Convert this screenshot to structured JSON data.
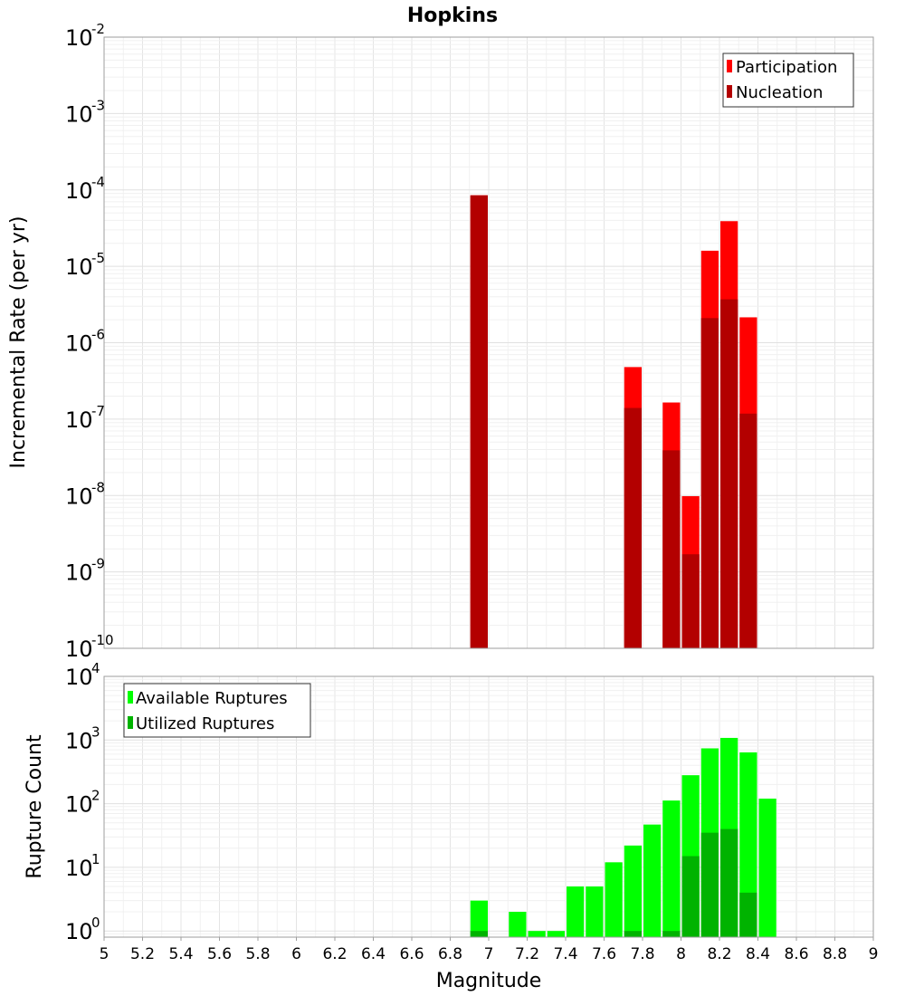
{
  "chart_data": [
    {
      "type": "bar",
      "title": "Hopkins",
      "xlabel": "Magnitude",
      "ylabel": "Incremental Rate (per yr)",
      "yscale": "log",
      "ylim": [
        1e-10,
        0.01
      ],
      "xlim": [
        5,
        9
      ],
      "grid": true,
      "legend_position": "top-right",
      "bar_width": 0.1,
      "y_ticks": [
        {
          "base": "10",
          "exp": "-10",
          "value": 1e-10
        },
        {
          "base": "10",
          "exp": "-9",
          "value": 1e-09
        },
        {
          "base": "10",
          "exp": "-8",
          "value": 1e-08
        },
        {
          "base": "10",
          "exp": "-7",
          "value": 1e-07
        },
        {
          "base": "10",
          "exp": "-6",
          "value": 1e-06
        },
        {
          "base": "10",
          "exp": "-5",
          "value": 1e-05
        },
        {
          "base": "10",
          "exp": "-4",
          "value": 0.0001
        },
        {
          "base": "10",
          "exp": "-3",
          "value": 0.001
        },
        {
          "base": "10",
          "exp": "-2",
          "value": 0.01
        }
      ],
      "series": [
        {
          "name": "Participation",
          "color": "#ff0000",
          "points": [
            {
              "x": 6.95,
              "y": 8.5e-05
            },
            {
              "x": 7.75,
              "y": 4.8e-07
            },
            {
              "x": 7.95,
              "y": 1.65e-07
            },
            {
              "x": 8.05,
              "y": 9.8e-09
            },
            {
              "x": 8.15,
              "y": 1.6e-05
            },
            {
              "x": 8.25,
              "y": 3.9e-05
            },
            {
              "x": 8.35,
              "y": 2.15e-06
            }
          ]
        },
        {
          "name": "Nucleation",
          "color": "#b30000",
          "points": [
            {
              "x": 6.95,
              "y": 8.5e-05
            },
            {
              "x": 7.75,
              "y": 1.4e-07
            },
            {
              "x": 7.95,
              "y": 3.9e-08
            },
            {
              "x": 8.05,
              "y": 1.7e-09
            },
            {
              "x": 8.15,
              "y": 2.1e-06
            },
            {
              "x": 8.25,
              "y": 3.7e-06
            },
            {
              "x": 8.35,
              "y": 1.18e-07
            }
          ]
        }
      ]
    },
    {
      "type": "bar",
      "xlabel": "Magnitude",
      "ylabel": "Rupture Count",
      "yscale": "log",
      "ylim": [
        0.8,
        10000
      ],
      "xlim": [
        5,
        9
      ],
      "grid": true,
      "legend_position": "top-left",
      "bar_width": 0.1,
      "y_ticks": [
        {
          "base": "10",
          "exp": "0",
          "value": 1
        },
        {
          "base": "10",
          "exp": "1",
          "value": 10
        },
        {
          "base": "10",
          "exp": "2",
          "value": 100
        },
        {
          "base": "10",
          "exp": "3",
          "value": 1000
        },
        {
          "base": "10",
          "exp": "4",
          "value": 10000
        }
      ],
      "x_ticks": [
        "5",
        "5.2",
        "5.4",
        "5.6",
        "5.8",
        "6",
        "6.2",
        "6.4",
        "6.6",
        "6.8",
        "7",
        "7.2",
        "7.4",
        "7.6",
        "7.8",
        "8",
        "8.2",
        "8.4",
        "8.6",
        "8.8",
        "9"
      ],
      "series": [
        {
          "name": "Available Ruptures",
          "color": "#00ff00",
          "points": [
            {
              "x": 6.95,
              "y": 3
            },
            {
              "x": 7.15,
              "y": 2
            },
            {
              "x": 7.25,
              "y": 1
            },
            {
              "x": 7.35,
              "y": 1
            },
            {
              "x": 7.45,
              "y": 5
            },
            {
              "x": 7.55,
              "y": 5
            },
            {
              "x": 7.65,
              "y": 12
            },
            {
              "x": 7.75,
              "y": 22
            },
            {
              "x": 7.85,
              "y": 47
            },
            {
              "x": 7.95,
              "y": 112
            },
            {
              "x": 8.05,
              "y": 280
            },
            {
              "x": 8.15,
              "y": 740
            },
            {
              "x": 8.25,
              "y": 1080
            },
            {
              "x": 8.35,
              "y": 640
            },
            {
              "x": 8.45,
              "y": 120
            }
          ]
        },
        {
          "name": "Utilized Ruptures",
          "color": "#00b300",
          "points": [
            {
              "x": 6.95,
              "y": 1
            },
            {
              "x": 7.75,
              "y": 1
            },
            {
              "x": 7.95,
              "y": 1
            },
            {
              "x": 8.05,
              "y": 15
            },
            {
              "x": 8.15,
              "y": 35
            },
            {
              "x": 8.25,
              "y": 40
            },
            {
              "x": 8.35,
              "y": 4
            }
          ]
        }
      ]
    }
  ]
}
